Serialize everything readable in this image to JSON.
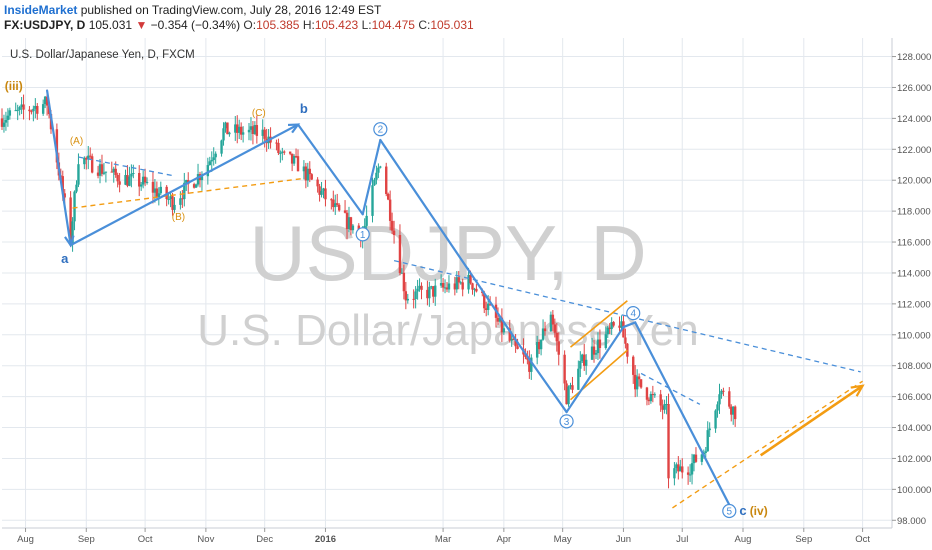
{
  "header": {
    "author": "InsideMarket",
    "published_text": "published on TradingView.com, July 28, 2016 12:49 EST",
    "symbol": "FX:USDJPY, D",
    "last": "105.031",
    "change_arrow": "▼",
    "change": "−0.354 (−0.34%)",
    "open_label": "O:",
    "open": "105.385",
    "high_label": "H:",
    "high": "105.423",
    "low_label": "L:",
    "low": "104.475",
    "close_label": "C:",
    "close": "105.031"
  },
  "chart_data": {
    "type": "candlestick",
    "title": "U.S. Dollar/Japanese Yen, D, FXCM",
    "watermark_symbol": "USDJPY, D",
    "watermark_name": "U.S. Dollar/Japanese Yen",
    "ylim": [
      97.5,
      129.2
    ],
    "y_ticks": [
      "128.000",
      "126.000",
      "124.000",
      "122.000",
      "120.000",
      "118.000",
      "116.000",
      "114.000",
      "112.000",
      "110.000",
      "108.000",
      "106.000",
      "104.000",
      "102.000",
      "100.000",
      "98.000"
    ],
    "x_ticks": [
      {
        "label": "Aug",
        "date": "2015-08-01"
      },
      {
        "label": "Sep",
        "date": "2015-09-01"
      },
      {
        "label": "Oct",
        "date": "2015-10-01"
      },
      {
        "label": "Nov",
        "date": "2015-11-01"
      },
      {
        "label": "Dec",
        "date": "2015-12-01"
      },
      {
        "label": "2016",
        "date": "2016-01-01"
      },
      {
        "label": "Mar",
        "date": "2016-03-01"
      },
      {
        "label": "Apr",
        "date": "2016-04-01"
      },
      {
        "label": "May",
        "date": "2016-05-01"
      },
      {
        "label": "Jun",
        "date": "2016-06-01"
      },
      {
        "label": "Jul",
        "date": "2016-07-01"
      },
      {
        "label": "Aug",
        "date": "2016-08-01"
      },
      {
        "label": "Sep",
        "date": "2016-09-01"
      },
      {
        "label": "Oct",
        "date": "2016-10-01"
      }
    ],
    "price_path": [
      {
        "date": "2015-07-20",
        "price": 124.0
      },
      {
        "date": "2015-08-12",
        "price": 125.0
      },
      {
        "date": "2015-08-24",
        "price": 116.2
      },
      {
        "date": "2015-08-28",
        "price": 121.5
      },
      {
        "date": "2015-09-15",
        "price": 120.3
      },
      {
        "date": "2015-09-30",
        "price": 119.8
      },
      {
        "date": "2015-10-15",
        "price": 118.6
      },
      {
        "date": "2015-11-01",
        "price": 120.8
      },
      {
        "date": "2015-11-10",
        "price": 123.2
      },
      {
        "date": "2015-12-01",
        "price": 123.0
      },
      {
        "date": "2015-12-10",
        "price": 121.5
      },
      {
        "date": "2015-12-18",
        "price": 121.0
      },
      {
        "date": "2016-01-10",
        "price": 117.5
      },
      {
        "date": "2016-01-20",
        "price": 116.5
      },
      {
        "date": "2016-01-29",
        "price": 121.3
      },
      {
        "date": "2016-02-11",
        "price": 112.5
      },
      {
        "date": "2016-02-25",
        "price": 112.8
      },
      {
        "date": "2016-03-15",
        "price": 113.5
      },
      {
        "date": "2016-04-07",
        "price": 109.0
      },
      {
        "date": "2016-04-15",
        "price": 108.0
      },
      {
        "date": "2016-04-25",
        "price": 111.5
      },
      {
        "date": "2016-05-03",
        "price": 106.0
      },
      {
        "date": "2016-05-12",
        "price": 108.5
      },
      {
        "date": "2016-05-30",
        "price": 110.8
      },
      {
        "date": "2016-06-07",
        "price": 107.0
      },
      {
        "date": "2016-06-23",
        "price": 105.0
      },
      {
        "date": "2016-06-24",
        "price": 101.0
      },
      {
        "date": "2016-07-05",
        "price": 101.5
      },
      {
        "date": "2016-07-12",
        "price": 102.5
      },
      {
        "date": "2016-07-20",
        "price": 106.5
      },
      {
        "date": "2016-07-28",
        "price": 105.0
      }
    ],
    "wave_lines": [
      {
        "from": {
          "date": "2015-08-12",
          "price": 125.8
        },
        "to": {
          "date": "2015-08-24",
          "price": 115.8
        }
      },
      {
        "from": {
          "date": "2015-08-24",
          "price": 115.8
        },
        "to": {
          "date": "2015-12-18",
          "price": 123.6
        }
      },
      {
        "from": {
          "date": "2015-12-18",
          "price": 123.6
        },
        "to": {
          "date": "2016-01-20",
          "price": 117.8
        }
      },
      {
        "from": {
          "date": "2016-01-20",
          "price": 117.8
        },
        "to": {
          "date": "2016-01-29",
          "price": 122.6
        }
      },
      {
        "from": {
          "date": "2016-01-29",
          "price": 122.6
        },
        "to": {
          "date": "2016-04-08",
          "price": 109.5
        }
      },
      {
        "from": {
          "date": "2016-04-08",
          "price": 109.5
        },
        "to": {
          "date": "2016-05-03",
          "price": 105.0
        }
      },
      {
        "from": {
          "date": "2016-05-03",
          "price": 105.0
        },
        "to": {
          "date": "2016-06-01",
          "price": 110.5
        }
      },
      {
        "from": {
          "date": "2016-06-01",
          "price": 110.5
        },
        "to": {
          "date": "2016-06-07",
          "price": 110.8
        }
      },
      {
        "from": {
          "date": "2016-06-07",
          "price": 110.8
        },
        "to": {
          "date": "2016-07-25",
          "price": 99.0
        }
      }
    ],
    "trendlines": [
      {
        "style": "blue-dashed",
        "from": {
          "date": "2015-08-28",
          "price": 121.5
        },
        "to": {
          "date": "2015-10-15",
          "price": 120.3
        }
      },
      {
        "style": "blue-dashed",
        "from": {
          "date": "2016-02-05",
          "price": 114.8
        },
        "to": {
          "date": "2016-09-30",
          "price": 107.6
        }
      },
      {
        "style": "blue-dashed",
        "from": {
          "date": "2016-06-10",
          "price": 107.5
        },
        "to": {
          "date": "2016-07-10",
          "price": 105.5
        }
      },
      {
        "style": "orange-dashed",
        "from": {
          "date": "2015-08-25",
          "price": 118.2
        },
        "to": {
          "date": "2015-12-20",
          "price": 120.1
        }
      },
      {
        "style": "orange-dashed",
        "from": {
          "date": "2016-06-26",
          "price": 98.8
        },
        "to": {
          "date": "2016-10-01",
          "price": 107.0
        }
      },
      {
        "style": "orange-solid",
        "from": {
          "date": "2016-05-05",
          "price": 109.2
        },
        "to": {
          "date": "2016-06-03",
          "price": 112.2
        }
      },
      {
        "style": "orange-solid",
        "from": {
          "date": "2016-05-05",
          "price": 105.8
        },
        "to": {
          "date": "2016-06-03",
          "price": 109.0
        }
      }
    ],
    "forecast_arrow": {
      "from": {
        "date": "2016-08-10",
        "price": 102.2
      },
      "to": {
        "date": "2016-10-01",
        "price": 106.7
      }
    },
    "labels": [
      {
        "text": "(iii)",
        "color": "orange",
        "date": "2015-07-26",
        "price": 126.1
      },
      {
        "text": "a",
        "color": "blue",
        "date": "2015-08-21",
        "price": 114.9
      },
      {
        "text": "(A)",
        "color": "orange",
        "date": "2015-08-27",
        "price": 122.6
      },
      {
        "text": "(B)",
        "color": "orange",
        "date": "2015-10-18",
        "price": 117.7
      },
      {
        "text": "(C)",
        "color": "orange",
        "date": "2015-11-28",
        "price": 124.4
      },
      {
        "text": "b",
        "color": "blue",
        "date": "2015-12-21",
        "price": 124.6
      },
      {
        "text": "1",
        "color": "blue-circle",
        "date": "2016-01-20",
        "price": 116.5
      },
      {
        "text": "2",
        "color": "blue-circle",
        "date": "2016-01-29",
        "price": 123.3
      },
      {
        "text": "3",
        "color": "blue-circle",
        "date": "2016-05-03",
        "price": 104.4
      },
      {
        "text": "4",
        "color": "blue-circle",
        "date": "2016-06-06",
        "price": 111.4
      },
      {
        "text": "5",
        "color": "blue-circle",
        "date": "2016-07-25",
        "price": 98.6
      },
      {
        "text": "c",
        "color": "blue",
        "date": "2016-08-01",
        "price": 98.6
      },
      {
        "text": "(iv)",
        "color": "orange",
        "date": "2016-08-09",
        "price": 98.6
      }
    ]
  },
  "colors": {
    "up": "#26a69a",
    "down": "#e04343",
    "wave": "#4a8fd9",
    "orange": "#f39c12",
    "grid": "#e3e8ee",
    "axis_text": "#555555",
    "watermark": "#d0d0d0"
  }
}
